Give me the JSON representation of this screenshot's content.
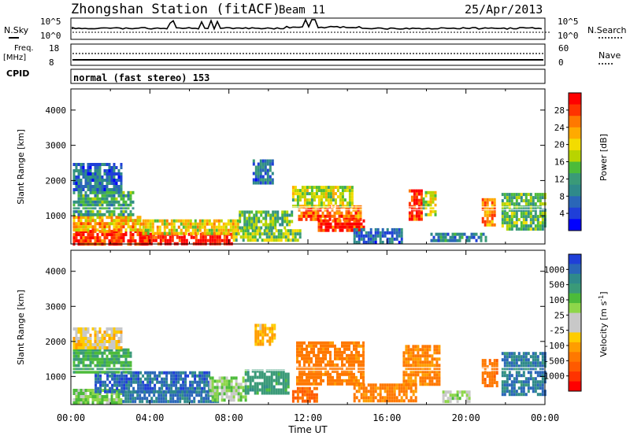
{
  "header": {
    "station": "Zhongshan Station (fitACF)",
    "beam": "Beam 11",
    "date": "25/Apr/2013"
  },
  "summary": {
    "nsky_label": "N.Sky",
    "nsearch_label": "N.Search",
    "count_ticks": [
      "10^5",
      "10^0"
    ],
    "freq_label_1": "Freq.",
    "freq_label_2": "[MHz]",
    "freq_ticks": [
      "18",
      "8"
    ],
    "nave_ticks": [
      "60",
      "0"
    ],
    "nave_label": "Nave",
    "cpid_label": "CPID",
    "mode_text": "normal (fast stereo) 153"
  },
  "chart_data": [
    {
      "type": "heatmap",
      "panel": "power",
      "ylabel": "Slant Range [km]",
      "xlabel": "",
      "ylim": [
        200,
        4600
      ],
      "yticks": [
        1000,
        2000,
        3000,
        4000
      ],
      "colorbar_label": "Power [dB]",
      "colorbar_ticks": [
        "28",
        "24",
        "20",
        "16",
        "12",
        "8",
        "4"
      ],
      "colorbar_colors": [
        "#ff0000",
        "#ff3300",
        "#ff7800",
        "#ffaa00",
        "#f3dc00",
        "#b8d400",
        "#4cbb3a",
        "#3a9a78",
        "#2f8a8a",
        "#2a66b8",
        "#1f3fd8",
        "#0000ff"
      ],
      "regions": [
        {
          "t0": 0.1,
          "t1": 3.9,
          "r0": 240,
          "r1": 600,
          "level": 26
        },
        {
          "t0": 3.9,
          "t1": 8.2,
          "r0": 240,
          "r1": 520,
          "level": 28
        },
        {
          "t0": 0.1,
          "t1": 3.5,
          "r0": 600,
          "r1": 1000,
          "level": 20
        },
        {
          "t0": 3.5,
          "t1": 8.5,
          "r0": 520,
          "r1": 900,
          "level": 18
        },
        {
          "t0": 8.2,
          "t1": 11.6,
          "r0": 300,
          "r1": 620,
          "level": 14
        },
        {
          "t0": 0.1,
          "t1": 3.2,
          "r0": 1000,
          "r1": 1700,
          "level": 10
        },
        {
          "t0": 8.5,
          "t1": 11.2,
          "r0": 620,
          "r1": 1150,
          "level": 12
        },
        {
          "t0": 11.5,
          "t1": 14.7,
          "r0": 900,
          "r1": 1300,
          "level": 24
        },
        {
          "t0": 12.5,
          "t1": 14.8,
          "r0": 620,
          "r1": 900,
          "level": 26
        },
        {
          "t0": 11.2,
          "t1": 14.3,
          "r0": 1300,
          "r1": 1850,
          "level": 16
        },
        {
          "t0": 14.3,
          "t1": 16.8,
          "r0": 260,
          "r1": 650,
          "level": 6
        },
        {
          "t0": 17.1,
          "t1": 17.8,
          "r0": 900,
          "r1": 1750,
          "level": 26
        },
        {
          "t0": 17.8,
          "t1": 18.5,
          "r0": 1050,
          "r1": 1700,
          "level": 16
        },
        {
          "t0": 18.2,
          "t1": 21.0,
          "r0": 260,
          "r1": 520,
          "level": 8
        },
        {
          "t0": 20.8,
          "t1": 21.4,
          "r0": 700,
          "r1": 1500,
          "level": 22
        },
        {
          "t0": 21.8,
          "t1": 24.0,
          "r0": 600,
          "r1": 1650,
          "level": 12
        },
        {
          "t0": 0.1,
          "t1": 2.6,
          "r0": 1700,
          "r1": 2500,
          "level": 6
        },
        {
          "t0": 9.2,
          "t1": 10.2,
          "r0": 1900,
          "r1": 2600,
          "level": 6
        }
      ]
    },
    {
      "type": "heatmap",
      "panel": "velocity",
      "ylabel": "Slant Range [km]",
      "xlabel": "Time UT",
      "ylim": [
        200,
        4600
      ],
      "yticks": [
        1000,
        2000,
        3000,
        4000
      ],
      "xticks": [
        "00:00",
        "04:00",
        "08:00",
        "12:00",
        "16:00",
        "20:00",
        "00:00"
      ],
      "colorbar_label": "Velocity [m s^-1]",
      "colorbar_ticks": [
        "1000",
        "500",
        "100",
        "25",
        "-25",
        "-100",
        "-500",
        "-1000"
      ],
      "colorbar_colors": [
        "#1f3fd8",
        "#2a66b8",
        "#2f8a8a",
        "#3a9a78",
        "#4cbb3a",
        "#8ed64a",
        "#c8c8c8",
        "#c8c8c8",
        "#ffcc00",
        "#ff9d00",
        "#ff7800",
        "#ff5a00",
        "#ff3300",
        "#ff0000"
      ],
      "regions": [
        {
          "t0": 0.1,
          "t1": 2.6,
          "r0": 240,
          "r1": 650,
          "velocity": 80
        },
        {
          "t0": 1.2,
          "t1": 7.0,
          "r0": 600,
          "r1": 1150,
          "velocity": 700
        },
        {
          "t0": 2.6,
          "t1": 7.5,
          "r0": 260,
          "r1": 600,
          "velocity": 600
        },
        {
          "t0": 7.0,
          "t1": 8.8,
          "r0": 300,
          "r1": 1000,
          "velocity": 60
        },
        {
          "t0": 8.8,
          "t1": 11.0,
          "r0": 500,
          "r1": 1200,
          "velocity": 300
        },
        {
          "t0": 0.1,
          "t1": 3.0,
          "r0": 1150,
          "r1": 1800,
          "velocity": 200
        },
        {
          "t0": 11.4,
          "t1": 14.8,
          "r0": 800,
          "r1": 2000,
          "velocity": -250
        },
        {
          "t0": 11.2,
          "t1": 12.5,
          "r0": 300,
          "r1": 700,
          "velocity": -400
        },
        {
          "t0": 14.3,
          "t1": 17.5,
          "r0": 300,
          "r1": 800,
          "velocity": -220
        },
        {
          "t0": 16.8,
          "t1": 18.6,
          "r0": 800,
          "r1": 1900,
          "velocity": -200
        },
        {
          "t0": 18.8,
          "t1": 20.2,
          "r0": 300,
          "r1": 600,
          "velocity": 30
        },
        {
          "t0": 20.8,
          "t1": 21.6,
          "r0": 700,
          "r1": 1500,
          "velocity": -300
        },
        {
          "t0": 21.8,
          "t1": 24.0,
          "r0": 500,
          "r1": 1700,
          "velocity": 600
        },
        {
          "t0": 0.1,
          "t1": 2.6,
          "r0": 1800,
          "r1": 2400,
          "velocity": -40
        },
        {
          "t0": 9.3,
          "t1": 10.3,
          "r0": 1900,
          "r1": 2500,
          "velocity": -100
        }
      ]
    }
  ]
}
